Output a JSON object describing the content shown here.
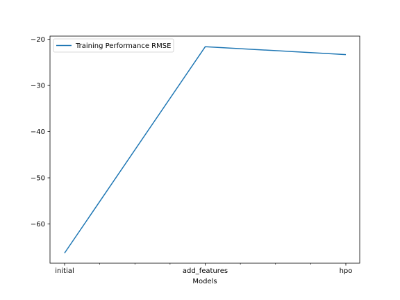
{
  "chart_data": {
    "type": "line",
    "categories": [
      "initial",
      "add_features",
      "hpo"
    ],
    "series": [
      {
        "name": "Training Performance RMSE",
        "values": [
          -66.3,
          -21.6,
          -23.3
        ],
        "color": "#1f77b4"
      }
    ],
    "xlabel": "Models",
    "ylabel": "",
    "ylim": [
      -68.5,
      -19.3
    ],
    "yticks": [
      -60,
      -50,
      -40,
      -30,
      -20
    ],
    "ytick_labels": [
      "−60",
      "−50",
      "−40",
      "−30",
      "−20"
    ],
    "minor_xticks": 7,
    "grid": false,
    "legend_position": "upper left"
  }
}
